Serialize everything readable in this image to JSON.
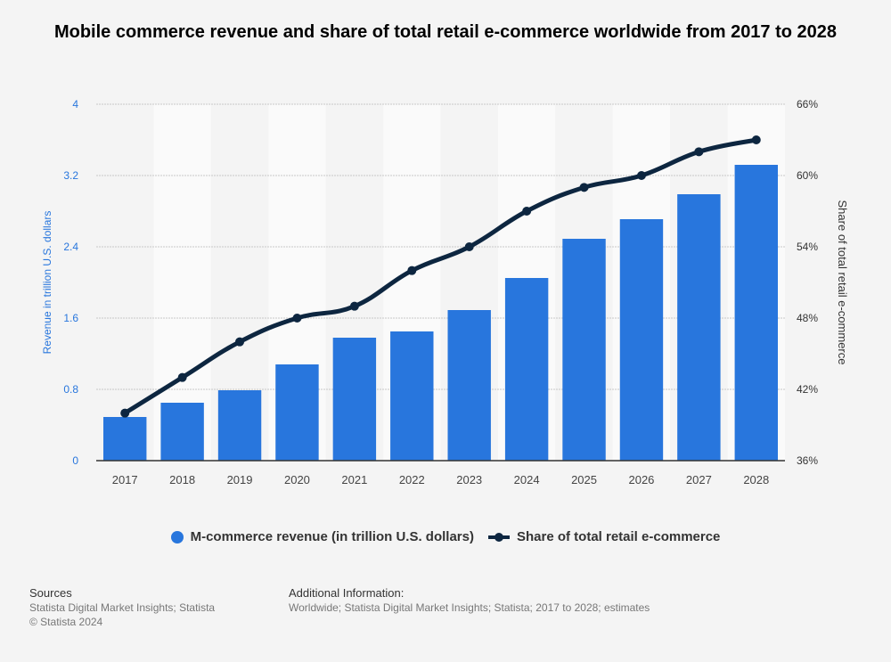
{
  "chart_data": {
    "type": "bar+line",
    "title": "Mobile commerce revenue and share of total retail e-commerce worldwide from 2017 to 2028",
    "categories": [
      "2017",
      "2018",
      "2019",
      "2020",
      "2021",
      "2022",
      "2023",
      "2024",
      "2025",
      "2026",
      "2027",
      "2028"
    ],
    "series": [
      {
        "name": "M-commerce revenue (in trillion U.S. dollars)",
        "type": "bar",
        "axis": "left",
        "color": "#2876dd",
        "values": [
          0.49,
          0.65,
          0.79,
          1.08,
          1.38,
          1.45,
          1.69,
          2.05,
          2.49,
          2.71,
          2.99,
          3.32
        ]
      },
      {
        "name": "Share of total retail e-commerce",
        "type": "line",
        "axis": "right",
        "color": "#0d2640",
        "values": [
          40,
          43,
          46,
          48,
          49,
          52,
          54,
          57,
          59,
          60,
          62,
          63
        ]
      }
    ],
    "ylabel": "Revenue in trillion U.S. dollars",
    "y2label": "Share of total retail e-commerce",
    "ylim": [
      0,
      4
    ],
    "y2lim": [
      36,
      66
    ],
    "yticks": [
      "0",
      "0.8",
      "1.6",
      "2.4",
      "3.2",
      "4"
    ],
    "y2ticks": [
      "36%",
      "42%",
      "48%",
      "54%",
      "60%",
      "66%"
    ],
    "grid": true,
    "legend": "bottom"
  },
  "legend": {
    "bar": "M-commerce revenue (in trillion U.S. dollars)",
    "line": "Share of total retail e-commerce"
  },
  "footer": {
    "sources_title": "Sources",
    "sources": "Statista Digital Market Insights; Statista",
    "copyright": "© Statista 2024",
    "info_title": "Additional Information:",
    "info": "Worldwide; Statista Digital Market Insights; Statista; 2017 to 2028; estimates"
  }
}
